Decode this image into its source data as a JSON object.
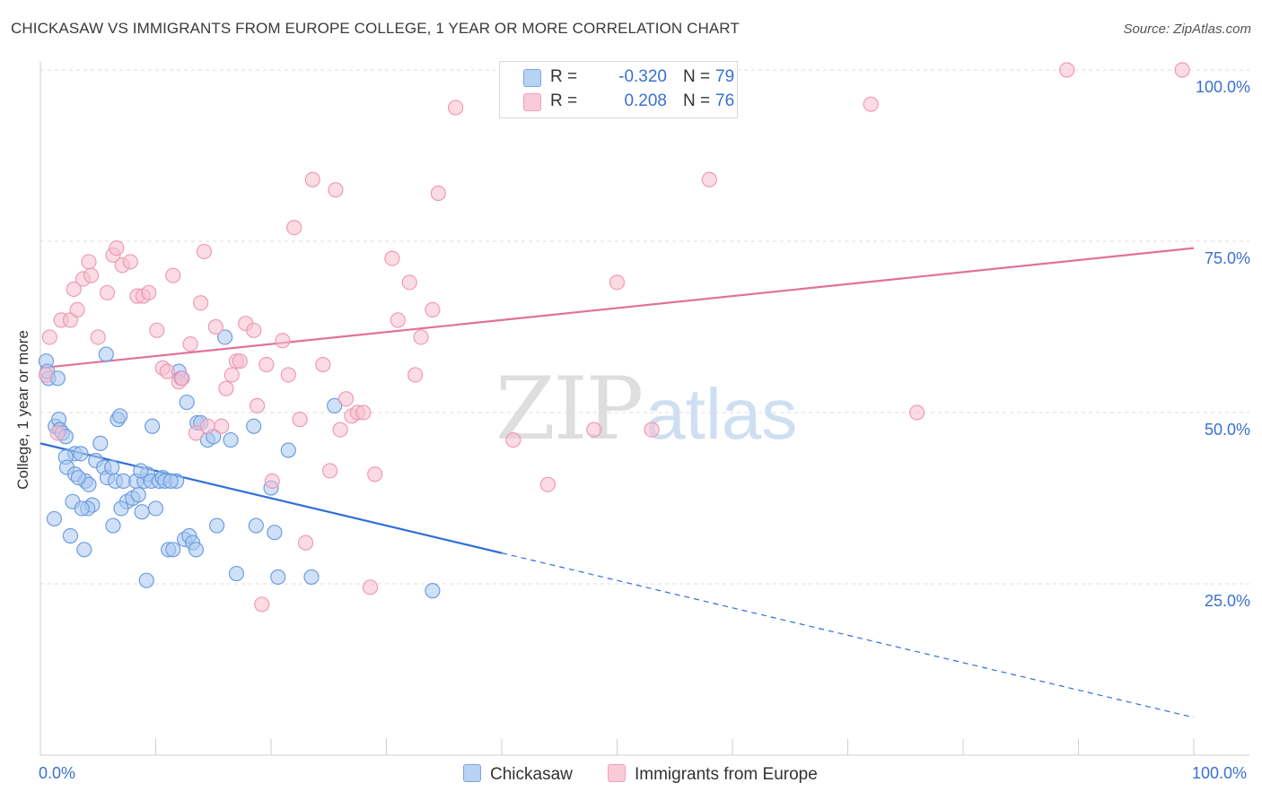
{
  "title": "CHICKASAW VS IMMIGRANTS FROM EUROPE COLLEGE, 1 YEAR OR MORE CORRELATION CHART",
  "source": "Source: ZipAtlas.com",
  "watermark": {
    "zip": "ZIP",
    "atlas": "atlas"
  },
  "legend": {
    "r_label": "R =",
    "n_label": "N =",
    "series": [
      {
        "name": "Chickasaw",
        "r": "-0.320",
        "n": "79"
      },
      {
        "name": "Immigrants from Europe",
        "r": "0.208",
        "n": "76"
      }
    ]
  },
  "axes": {
    "ylabel": "College, 1 year or more",
    "x_tick_left": "0.0%",
    "x_tick_right": "100.0%",
    "y_ticks": [
      "100.0%",
      "75.0%",
      "50.0%",
      "25.0%"
    ]
  },
  "chart_data": {
    "type": "scatter",
    "title": "CHICKASAW VS IMMIGRANTS FROM EUROPE COLLEGE, 1 YEAR OR MORE CORRELATION CHART",
    "xlabel": "",
    "ylabel": "College, 1 year or more",
    "xlim": [
      0,
      100
    ],
    "ylim": [
      0,
      100
    ],
    "y_gridlines": [
      25,
      50,
      75,
      100
    ],
    "colors": {
      "blue_fill": "#a9c8f0",
      "blue_stroke": "#6d9de0",
      "blue_line": "#2f6fd6",
      "pink_fill": "#f7bfd0",
      "pink_stroke": "#ef9ab5",
      "pink_line": "#e2709a"
    },
    "series": [
      {
        "name": "Chickasaw",
        "color": "blue",
        "r": -0.32,
        "n": 79,
        "trend": {
          "x0": 0,
          "y0": 45.5,
          "x1": 40,
          "y1": 29.5,
          "dash_to_x": 100,
          "dash_to_y": 5.5
        },
        "points": [
          [
            0.5,
            57.5
          ],
          [
            0.7,
            55
          ],
          [
            1.3,
            48
          ],
          [
            1.6,
            49
          ],
          [
            1.7,
            47.5
          ],
          [
            1.9,
            47
          ],
          [
            2.2,
            46.5
          ],
          [
            3.0,
            44
          ],
          [
            2.2,
            43.5
          ],
          [
            2.3,
            42
          ],
          [
            3.0,
            41
          ],
          [
            3.5,
            44
          ],
          [
            3.9,
            40
          ],
          [
            4.2,
            39.5
          ],
          [
            4.5,
            36.5
          ],
          [
            4.8,
            43
          ],
          [
            5.2,
            45.5
          ],
          [
            5.5,
            42
          ],
          [
            5.8,
            40.5
          ],
          [
            6.2,
            42
          ],
          [
            6.5,
            40
          ],
          [
            6.7,
            49
          ],
          [
            6.9,
            49.5
          ],
          [
            7.2,
            40
          ],
          [
            7.5,
            37
          ],
          [
            8.0,
            37.5
          ],
          [
            8.3,
            40
          ],
          [
            8.5,
            38
          ],
          [
            8.8,
            35.5
          ],
          [
            9.0,
            40
          ],
          [
            9.3,
            41
          ],
          [
            9.6,
            40
          ],
          [
            9.7,
            48
          ],
          [
            10.0,
            36
          ],
          [
            10.3,
            40
          ],
          [
            10.6,
            40.5
          ],
          [
            10.8,
            40
          ],
          [
            11.1,
            30
          ],
          [
            11.5,
            30
          ],
          [
            11.8,
            40
          ],
          [
            12.0,
            56
          ],
          [
            12.2,
            55
          ],
          [
            12.5,
            31.5
          ],
          [
            12.7,
            51.5
          ],
          [
            12.9,
            32
          ],
          [
            13.2,
            31
          ],
          [
            13.5,
            30
          ],
          [
            13.6,
            48.5
          ],
          [
            13.9,
            48.5
          ],
          [
            14.5,
            46
          ],
          [
            15.0,
            46.5
          ],
          [
            15.3,
            33.5
          ],
          [
            16.0,
            61
          ],
          [
            16.5,
            46
          ],
          [
            17.0,
            26.5
          ],
          [
            18.5,
            48
          ],
          [
            18.7,
            33.5
          ],
          [
            20.0,
            39
          ],
          [
            20.3,
            32.5
          ],
          [
            20.6,
            26
          ],
          [
            21.5,
            44.5
          ],
          [
            23.5,
            26
          ],
          [
            25.5,
            51
          ],
          [
            34.0,
            24
          ],
          [
            2.8,
            37
          ],
          [
            3.8,
            30
          ],
          [
            1.2,
            34.5
          ],
          [
            2.6,
            32
          ],
          [
            4.1,
            36
          ],
          [
            7.0,
            36
          ],
          [
            6.3,
            33.5
          ],
          [
            9.2,
            25.5
          ],
          [
            5.7,
            58.5
          ],
          [
            0.6,
            56
          ],
          [
            1.5,
            55
          ],
          [
            3.3,
            40.5
          ],
          [
            8.7,
            41.5
          ],
          [
            11.3,
            40
          ],
          [
            3.6,
            36
          ]
        ]
      },
      {
        "name": "Immigrants from Europe",
        "color": "pink",
        "r": 0.208,
        "n": 76,
        "trend": {
          "x0": 0,
          "y0": 56.5,
          "x1": 100,
          "y1": 74
        },
        "points": [
          [
            0.5,
            55.5
          ],
          [
            0.8,
            61
          ],
          [
            1.5,
            47
          ],
          [
            1.8,
            63.5
          ],
          [
            2.6,
            63.5
          ],
          [
            2.9,
            68
          ],
          [
            3.2,
            65
          ],
          [
            3.7,
            69.5
          ],
          [
            4.2,
            72
          ],
          [
            4.4,
            70
          ],
          [
            5.0,
            61
          ],
          [
            5.8,
            67.5
          ],
          [
            6.3,
            73
          ],
          [
            6.6,
            74
          ],
          [
            7.1,
            71.5
          ],
          [
            7.8,
            72
          ],
          [
            8.4,
            67
          ],
          [
            8.9,
            67
          ],
          [
            9.4,
            67.5
          ],
          [
            10.1,
            62
          ],
          [
            10.6,
            56.5
          ],
          [
            11.0,
            56
          ],
          [
            11.5,
            70
          ],
          [
            12.0,
            54.5
          ],
          [
            12.3,
            55
          ],
          [
            13.0,
            60
          ],
          [
            13.5,
            47
          ],
          [
            13.9,
            66
          ],
          [
            14.2,
            73.5
          ],
          [
            14.5,
            48
          ],
          [
            15.2,
            62.5
          ],
          [
            15.7,
            48
          ],
          [
            16.1,
            53.5
          ],
          [
            16.6,
            55.5
          ],
          [
            17.0,
            57.5
          ],
          [
            17.3,
            57.5
          ],
          [
            17.8,
            63
          ],
          [
            18.5,
            62
          ],
          [
            18.8,
            51
          ],
          [
            19.2,
            22
          ],
          [
            19.6,
            57
          ],
          [
            20.1,
            40
          ],
          [
            21.0,
            60.5
          ],
          [
            21.5,
            55.5
          ],
          [
            22.0,
            77
          ],
          [
            22.5,
            49
          ],
          [
            23.0,
            31
          ],
          [
            23.6,
            84
          ],
          [
            24.5,
            57
          ],
          [
            25.1,
            41.5
          ],
          [
            25.6,
            82.5
          ],
          [
            26.0,
            47.5
          ],
          [
            26.5,
            52
          ],
          [
            27.0,
            49.5
          ],
          [
            27.5,
            50
          ],
          [
            28.0,
            50
          ],
          [
            28.6,
            24.5
          ],
          [
            29.0,
            41
          ],
          [
            30.5,
            72.5
          ],
          [
            31.0,
            63.5
          ],
          [
            32.0,
            69
          ],
          [
            32.5,
            55.5
          ],
          [
            33.0,
            61
          ],
          [
            34.0,
            65
          ],
          [
            34.5,
            82
          ],
          [
            36.0,
            94.5
          ],
          [
            41.0,
            46
          ],
          [
            44.0,
            39.5
          ],
          [
            48.0,
            47.5
          ],
          [
            50.0,
            69
          ],
          [
            53.0,
            47.5
          ],
          [
            58.0,
            84
          ],
          [
            72.0,
            95
          ],
          [
            76.0,
            50
          ],
          [
            89.0,
            100
          ],
          [
            99.0,
            100
          ]
        ]
      }
    ]
  }
}
